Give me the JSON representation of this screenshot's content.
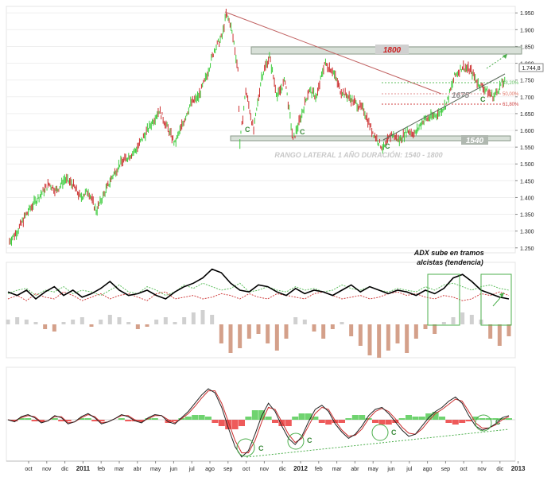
{
  "chart_data": {
    "type": "line",
    "price": {
      "yticks": [
        "1.950",
        "1.900",
        "1.850",
        "1.800",
        "1.750",
        "1.700",
        "1.650",
        "1.600",
        "1.550",
        "1.500",
        "1.450",
        "1.400",
        "1.350",
        "1.300",
        "1.250"
      ],
      "ylim": [
        1240,
        1960
      ],
      "last_value_label": "1.744,8",
      "series": [
        {
          "name": "",
          "points": [
            [
              0,
              1270
            ],
            [
              4,
              1300
            ],
            [
              8,
              1345
            ],
            [
              12,
              1380
            ],
            [
              16,
              1410
            ],
            [
              20,
              1440
            ],
            [
              24,
              1420
            ],
            [
              28,
              1455
            ],
            [
              32,
              1440
            ],
            [
              36,
              1400
            ],
            [
              40,
              1420
            ],
            [
              44,
              1360
            ],
            [
              48,
              1410
            ],
            [
              52,
              1460
            ],
            [
              56,
              1500
            ],
            [
              60,
              1520
            ],
            [
              64,
              1540
            ],
            [
              68,
              1580
            ],
            [
              72,
              1620
            ],
            [
              76,
              1660
            ],
            [
              80,
              1610
            ],
            [
              84,
              1560
            ],
            [
              88,
              1620
            ],
            [
              92,
              1680
            ],
            [
              96,
              1700
            ],
            [
              100,
              1760
            ],
            [
              104,
              1840
            ],
            [
              108,
              1880
            ],
            [
              110,
              1945
            ],
            [
              112,
              1920
            ],
            [
              114,
              1860
            ],
            [
              116,
              1780
            ],
            [
              117,
              1560
            ],
            [
              120,
              1720
            ],
            [
              124,
              1600
            ],
            [
              128,
              1760
            ],
            [
              132,
              1820
            ],
            [
              136,
              1700
            ],
            [
              140,
              1750
            ],
            [
              144,
              1570
            ],
            [
              148,
              1640
            ],
            [
              152,
              1720
            ],
            [
              156,
              1700
            ],
            [
              160,
              1800
            ],
            [
              164,
              1780
            ],
            [
              168,
              1720
            ],
            [
              172,
              1700
            ],
            [
              176,
              1680
            ],
            [
              180,
              1660
            ],
            [
              184,
              1600
            ],
            [
              188,
              1560
            ],
            [
              190,
              1545
            ],
            [
              194,
              1590
            ],
            [
              198,
              1570
            ],
            [
              202,
              1600
            ],
            [
              206,
              1590
            ],
            [
              210,
              1630
            ],
            [
              214,
              1640
            ],
            [
              218,
              1650
            ],
            [
              222,
              1680
            ],
            [
              226,
              1760
            ],
            [
              230,
              1790
            ],
            [
              234,
              1780
            ],
            [
              238,
              1740
            ],
            [
              242,
              1720
            ],
            [
              246,
              1700
            ],
            [
              250,
              1740
            ],
            [
              252,
              1745
            ]
          ]
        }
      ],
      "annotations": {
        "resistance_label": "1800",
        "support_label": "1540",
        "mid_label": "1675",
        "range_text": "RANGO LATERAL 1 AÑO DURACIÓN: 1540 - 1800",
        "c_label": "C",
        "fib_labels": [
          "38,20%",
          "50,00%",
          "61,80%"
        ]
      }
    },
    "adx": {
      "annotation": "ADX sube en tramos alcistas (tendencia)",
      "adx_line": [
        28,
        24,
        30,
        20,
        28,
        34,
        24,
        30,
        22,
        26,
        32,
        40,
        30,
        24,
        26,
        30,
        24,
        20,
        28,
        34,
        38,
        44,
        54,
        50,
        38,
        30,
        28,
        36,
        34,
        28,
        24,
        32,
        26,
        30,
        28,
        24,
        30,
        36,
        28,
        34,
        30,
        26,
        30,
        28,
        24,
        30,
        26,
        32,
        44,
        48,
        40,
        30,
        26,
        22,
        20
      ],
      "di_plus": [
        26,
        30,
        32,
        24,
        30,
        28,
        34,
        26,
        30,
        28,
        24,
        30,
        36,
        28,
        26,
        34,
        30,
        24,
        28,
        36,
        32,
        38,
        34,
        30,
        32,
        38,
        28,
        30,
        34,
        30,
        28,
        34,
        30,
        32,
        28,
        30,
        36,
        32,
        30,
        34,
        30,
        28,
        32,
        30,
        28,
        34,
        30,
        36,
        38,
        34,
        30,
        34,
        36,
        32,
        30
      ],
      "di_minus": [
        20,
        24,
        18,
        26,
        22,
        20,
        28,
        24,
        18,
        22,
        26,
        20,
        24,
        26,
        22,
        18,
        26,
        28,
        20,
        22,
        24,
        20,
        22,
        26,
        24,
        20,
        26,
        22,
        20,
        26,
        24,
        22,
        20,
        26,
        28,
        24,
        20,
        22,
        24,
        20,
        22,
        26,
        28,
        24,
        26,
        22,
        20,
        24,
        22,
        18,
        20,
        26,
        24,
        28,
        24
      ],
      "histogram": [
        2,
        3,
        2,
        1,
        -2,
        -3,
        1,
        2,
        3,
        -1,
        2,
        4,
        3,
        1,
        -2,
        -1,
        2,
        3,
        1,
        3,
        5,
        6,
        4,
        -8,
        -12,
        -10,
        -6,
        -4,
        -8,
        -11,
        -6,
        3,
        2,
        -3,
        -6,
        -2,
        1,
        -5,
        -9,
        -13,
        -14,
        -11,
        -8,
        -12,
        -6,
        -2,
        -4,
        1,
        3,
        5,
        4,
        2,
        -6,
        -9,
        -5
      ]
    },
    "oscillator": {
      "line_a": [
        0,
        -2,
        3,
        5,
        2,
        -3,
        -1,
        4,
        2,
        -4,
        -2,
        3,
        6,
        2,
        -4,
        -2,
        1,
        5,
        3,
        -1,
        -3,
        2,
        5,
        4,
        -2,
        -4,
        2,
        8,
        16,
        24,
        30,
        26,
        12,
        -8,
        -26,
        -36,
        -30,
        -14,
        4,
        16,
        8,
        -6,
        -18,
        -24,
        -16,
        -2,
        10,
        14,
        8,
        -4,
        -12,
        -18,
        -14,
        -6,
        4,
        10,
        12,
        6,
        -2,
        -10,
        -16,
        -14,
        -6,
        2,
        8,
        12,
        18,
        22,
        16,
        4,
        -6,
        -10,
        -8,
        -4,
        2,
        4
      ],
      "line_b": [
        0,
        -1,
        2,
        4,
        3,
        -2,
        -1,
        3,
        3,
        -3,
        -2,
        2,
        5,
        3,
        -3,
        -2,
        1,
        4,
        4,
        0,
        -2,
        1,
        4,
        4,
        0,
        -3,
        1,
        6,
        13,
        21,
        28,
        28,
        16,
        -2,
        -20,
        -32,
        -32,
        -20,
        -2,
        12,
        10,
        -2,
        -14,
        -22,
        -18,
        -6,
        6,
        12,
        10,
        -1,
        -10,
        -16,
        -15,
        -9,
        1,
        8,
        11,
        8,
        1,
        -7,
        -13,
        -14,
        -9,
        -1,
        6,
        10,
        15,
        20,
        18,
        8,
        -3,
        -8,
        -8,
        -5,
        0,
        3
      ],
      "hist": [
        0,
        -1,
        1,
        1,
        -1,
        -1,
        0,
        1,
        -1,
        -1,
        0,
        1,
        1,
        -1,
        -1,
        0,
        0,
        1,
        -1,
        -1,
        -1,
        1,
        1,
        0,
        -2,
        -1,
        1,
        2,
        3,
        3,
        2,
        -2,
        -4,
        -6,
        -6,
        -4,
        2,
        6,
        6,
        2,
        -2,
        -4,
        -4,
        2,
        4,
        4,
        2,
        -2,
        -3,
        -2,
        -2,
        1,
        3,
        3,
        1,
        -2,
        -3,
        -3,
        -2,
        1,
        3,
        2,
        2,
        4,
        5,
        2,
        -2,
        -3,
        -2,
        -1,
        2,
        1,
        1,
        1,
        1,
        1
      ],
      "c_label": "C"
    },
    "x_axis": {
      "ticks": [
        "oct",
        "nov",
        "dic",
        "2011",
        "feb",
        "mar",
        "abr",
        "may",
        "jun",
        "jul",
        "ago",
        "sep",
        "oct",
        "nov",
        "dic",
        "2012",
        "feb",
        "mar",
        "abr",
        "may",
        "jun",
        "jul",
        "ago",
        "sep",
        "oct",
        "nov",
        "dic",
        "2013"
      ]
    },
    "colors": {
      "up": "#3ccc3c",
      "down": "#cc2f2f",
      "trendline": "#c06060",
      "adx": "#000000",
      "hist_neg": "#d4a08a",
      "hist_pos": "#d0d0d0",
      "osc_pos": "#6fd36f",
      "osc_neg": "#ee5a5a",
      "box": "#4caf4c"
    }
  }
}
